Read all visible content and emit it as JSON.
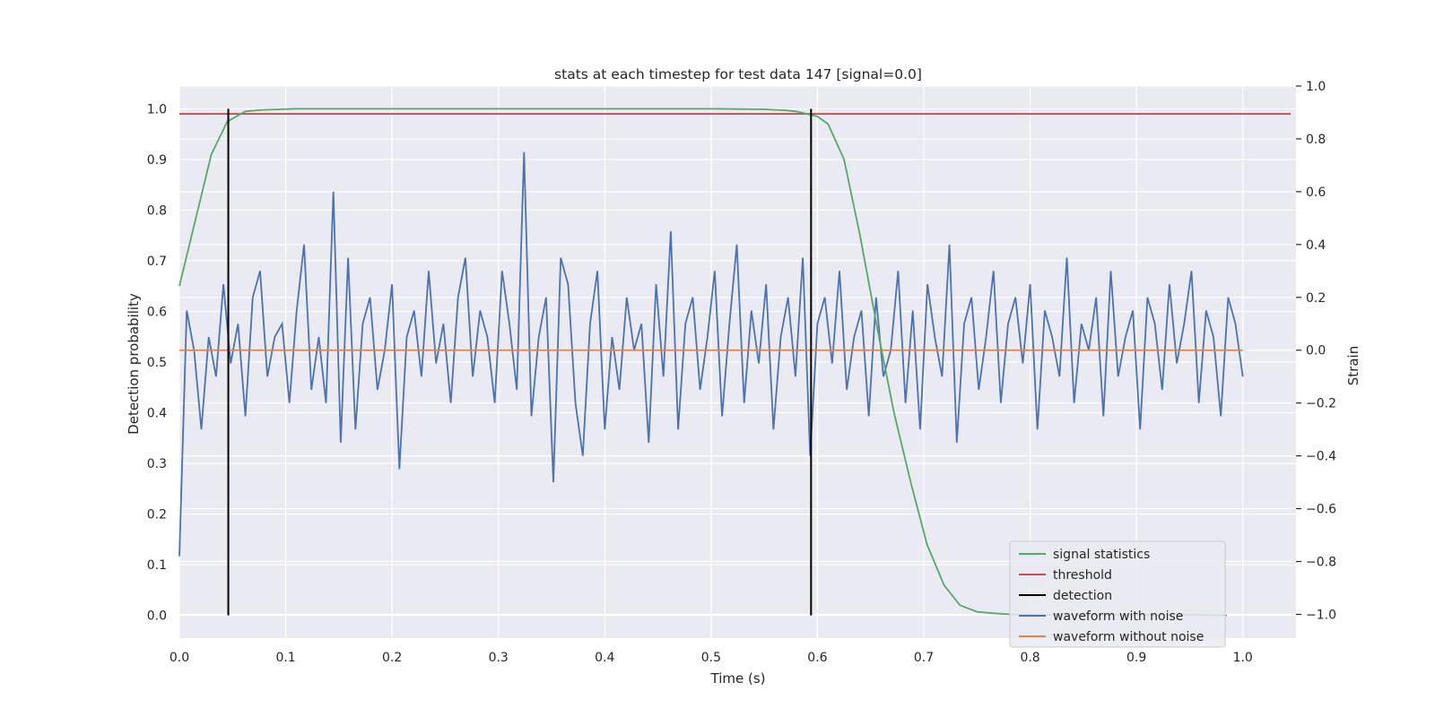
{
  "chart_data": {
    "type": "line",
    "title": "stats at each timestep for test data 147 [signal=0.0]",
    "xlabel": "Time (s)",
    "ylabel": "Detection probability",
    "y2label": "Strain",
    "xlim": [
      -0.0,
      1.05
    ],
    "ylim": [
      -0.045,
      1.045
    ],
    "y2lim": [
      -1.09,
      1.0
    ],
    "xticks": [
      "0.0",
      "0.1",
      "0.2",
      "0.3",
      "0.4",
      "0.5",
      "0.6",
      "0.7",
      "0.8",
      "0.9",
      "1.0"
    ],
    "xtick_values": [
      0.0,
      0.1,
      0.2,
      0.3,
      0.4,
      0.5,
      0.6,
      0.7,
      0.8,
      0.9,
      1.0
    ],
    "yticks": [
      "0.0",
      "0.1",
      "0.2",
      "0.3",
      "0.4",
      "0.5",
      "0.6",
      "0.7",
      "0.8",
      "0.9",
      "1.0"
    ],
    "ytick_values": [
      0.0,
      0.1,
      0.2,
      0.3,
      0.4,
      0.5,
      0.6,
      0.7,
      0.8,
      0.9,
      1.0
    ],
    "y2ticks": [
      "−1.0",
      "−0.8",
      "−0.6",
      "−0.4",
      "−0.2",
      "0.0",
      "0.2",
      "0.4",
      "0.6",
      "0.8",
      "1.0"
    ],
    "y2tick_values": [
      -1.0,
      -0.8,
      -0.6,
      -0.4,
      -0.2,
      0.0,
      0.2,
      0.4,
      0.6,
      0.8,
      1.0
    ],
    "grid": true,
    "legend_position": "lower-right",
    "colors": {
      "signal_statistics": "#55a868",
      "threshold": "#c44e52",
      "detection": "#000000",
      "waveform_with_noise": "#4c72b0",
      "waveform_without_noise": "#dd8452",
      "background": "#eaeaf2",
      "grid": "#ffffff"
    },
    "legend": [
      {
        "label": "signal statistics",
        "key": "signal_statistics"
      },
      {
        "label": "threshold",
        "key": "threshold"
      },
      {
        "label": "detection",
        "key": "detection"
      },
      {
        "label": "waveform with noise",
        "key": "waveform_with_noise"
      },
      {
        "label": "waveform without noise",
        "key": "waveform_without_noise"
      }
    ],
    "signal_statistics": {
      "axis": "left",
      "x": [
        0.0,
        0.015,
        0.03,
        0.045,
        0.062,
        0.078,
        0.094,
        0.11,
        0.2,
        0.3,
        0.4,
        0.5,
        0.55,
        0.57,
        0.58,
        0.59,
        0.6,
        0.61,
        0.625,
        0.64,
        0.656,
        0.672,
        0.688,
        0.703,
        0.719,
        0.734,
        0.75,
        0.766,
        0.78,
        0.8,
        0.85,
        0.9,
        0.95,
        0.985
      ],
      "y": [
        0.65,
        0.78,
        0.91,
        0.975,
        0.995,
        0.998,
        0.999,
        1.0,
        1.0,
        1.0,
        1.0,
        1.0,
        0.999,
        0.997,
        0.995,
        0.99,
        0.985,
        0.97,
        0.9,
        0.75,
        0.57,
        0.4,
        0.26,
        0.14,
        0.06,
        0.02,
        0.007,
        0.004,
        0.002,
        0.001,
        0.001,
        0.001,
        0.001,
        0.0
      ]
    },
    "threshold": {
      "axis": "left",
      "value": 0.99,
      "x": [
        0.0,
        1.045
      ]
    },
    "detections": {
      "axis": "left",
      "x": [
        0.046,
        0.594
      ],
      "y": [
        0.0,
        1.0
      ]
    },
    "waveform_without_noise": {
      "axis": "right",
      "value": 0.0,
      "x": [
        0.0,
        1.0
      ]
    },
    "waveform_with_noise": {
      "axis": "right",
      "x_start": 0.0,
      "x_end": 1.0,
      "y": [
        -0.78,
        0.15,
        0.0,
        -0.3,
        0.05,
        -0.1,
        0.25,
        -0.05,
        0.1,
        -0.25,
        0.2,
        0.3,
        -0.1,
        0.05,
        0.1,
        -0.2,
        0.15,
        0.4,
        -0.15,
        0.05,
        -0.2,
        0.6,
        -0.35,
        0.35,
        -0.3,
        0.1,
        0.2,
        -0.15,
        0.0,
        0.25,
        -0.45,
        0.05,
        0.15,
        -0.1,
        0.3,
        -0.05,
        0.1,
        -0.2,
        0.2,
        0.35,
        -0.1,
        0.15,
        0.05,
        -0.2,
        0.3,
        0.1,
        -0.15,
        0.75,
        -0.25,
        0.05,
        0.2,
        -0.5,
        0.35,
        0.25,
        -0.2,
        -0.4,
        0.1,
        0.3,
        -0.3,
        0.05,
        -0.15,
        0.2,
        0.0,
        0.1,
        -0.35,
        0.25,
        -0.1,
        0.45,
        -0.3,
        0.1,
        0.2,
        -0.15,
        0.05,
        0.3,
        -0.25,
        0.1,
        0.4,
        -0.2,
        0.15,
        -0.05,
        0.25,
        -0.3,
        0.05,
        0.2,
        -0.1,
        0.35,
        -0.4,
        0.1,
        0.2,
        -0.05,
        0.3,
        -0.15,
        0.05,
        0.15,
        -0.25,
        0.2,
        -0.1,
        0.0,
        0.3,
        -0.2,
        0.15,
        -0.3,
        0.25,
        0.05,
        -0.1,
        0.4,
        -0.35,
        0.1,
        0.2,
        -0.15,
        0.05,
        0.3,
        -0.2,
        0.1,
        0.2,
        -0.05,
        0.25,
        -0.3,
        0.15,
        0.05,
        -0.1,
        0.35,
        -0.2,
        0.1,
        0.0,
        0.2,
        -0.25,
        0.3,
        -0.1,
        0.05,
        0.15,
        -0.3,
        0.2,
        0.1,
        -0.15,
        0.25,
        -0.05,
        0.1,
        0.3,
        -0.2,
        0.15,
        0.05,
        -0.25,
        0.2,
        0.1,
        -0.1
      ],
      "y_note_hidden": null
    }
  }
}
